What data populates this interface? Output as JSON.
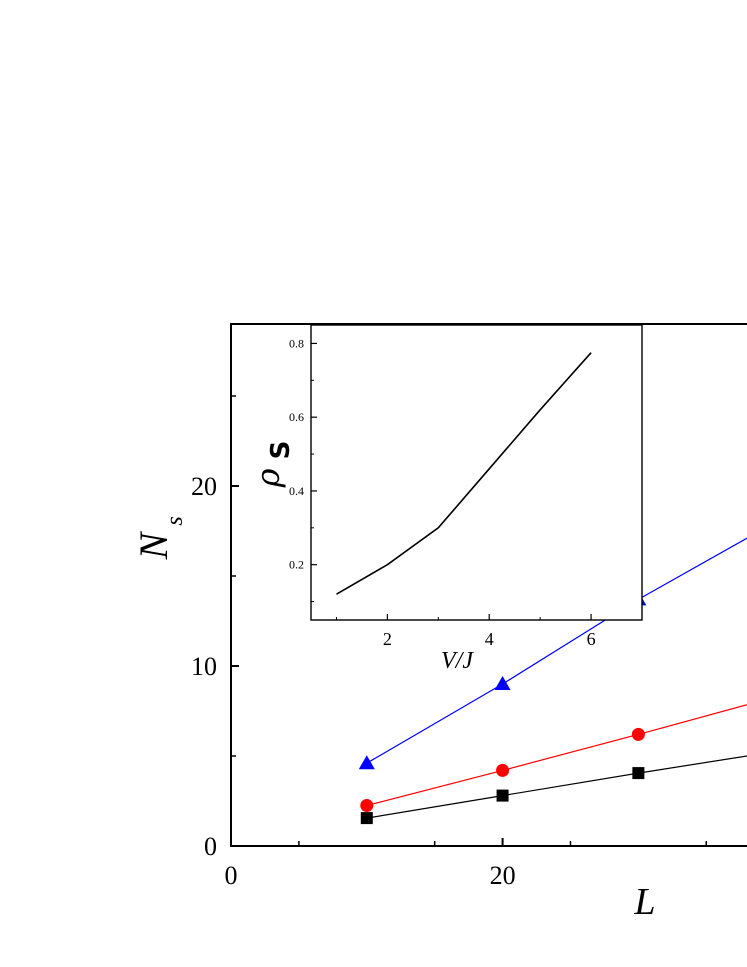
{
  "chart_data": [
    {
      "type": "line",
      "title": "",
      "xlabel": "L",
      "ylabel": "N",
      "ylabel_sub": "s",
      "xlim": [
        0,
        38
      ],
      "ylim": [
        0,
        29
      ],
      "x_ticks": [
        0,
        20
      ],
      "x_tick_labels": [
        "0",
        "20"
      ],
      "y_ticks": [
        0,
        10,
        20
      ],
      "y_tick_labels": [
        "0",
        "10",
        "20"
      ],
      "grid": false,
      "series": [
        {
          "marker": "square",
          "color": "#000000",
          "x": [
            10,
            20,
            30,
            38
          ],
          "y": [
            1.55,
            2.8,
            4.05,
            5.0
          ],
          "markers_at": [
            0,
            1,
            2
          ]
        },
        {
          "marker": "circle",
          "color": "#ff0000",
          "x": [
            10,
            20,
            30,
            38
          ],
          "y": [
            2.25,
            4.2,
            6.2,
            7.85
          ],
          "markers_at": [
            0,
            1,
            2
          ]
        },
        {
          "marker": "triangle",
          "color": "#0000ff",
          "x": [
            10,
            20,
            30,
            38
          ],
          "y": [
            4.6,
            9.0,
            13.7,
            17.1
          ],
          "markers_at": [
            0,
            1,
            2
          ]
        }
      ]
    },
    {
      "type": "line",
      "title": "",
      "xlabel": "V/J",
      "ylabel": "ρ",
      "ylabel_sub": "S",
      "xlim": [
        0.5,
        7.0
      ],
      "ylim": [
        0.05,
        0.85
      ],
      "x_ticks": [
        2,
        4,
        6
      ],
      "x_tick_labels": [
        "2",
        "4",
        "6"
      ],
      "y_ticks": [
        0.2,
        0.4,
        0.6,
        0.8
      ],
      "y_tick_labels": [
        "0.2",
        "0.4",
        "0.6",
        "0.8"
      ],
      "grid": false,
      "series": [
        {
          "color": "#000000",
          "x": [
            1,
            2,
            3,
            4,
            5,
            6
          ],
          "y": [
            0.12,
            0.2,
            0.3,
            0.46,
            0.62,
            0.775
          ]
        }
      ]
    }
  ]
}
